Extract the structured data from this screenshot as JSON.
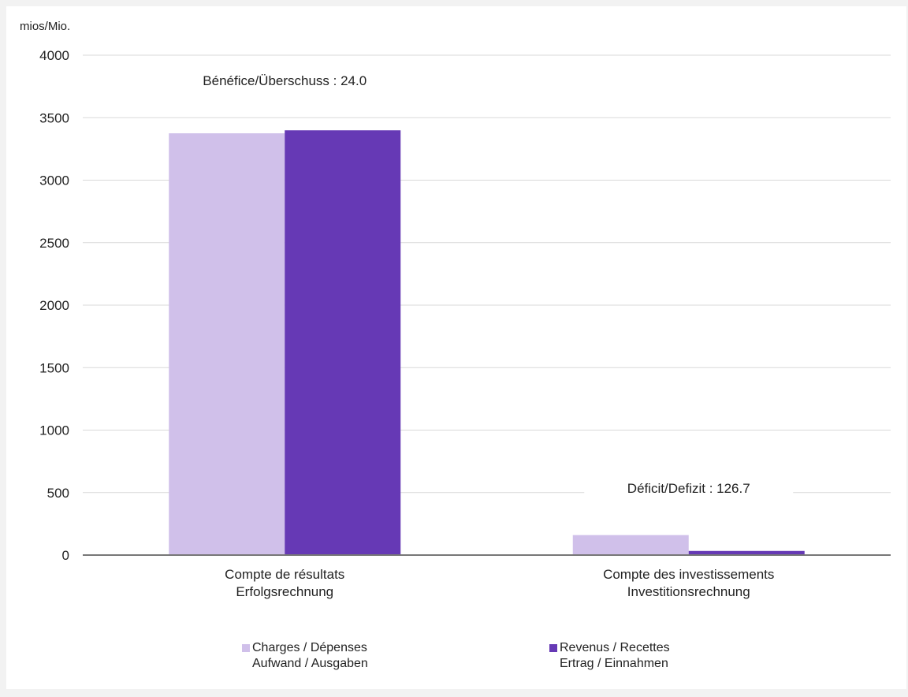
{
  "chart_data": {
    "type": "bar",
    "unit_label": "mios/Mio.",
    "categories": [
      "Compte de résultats\nErfolgsrechnung",
      "Compte des investissements\nInvestitionsrechnung"
    ],
    "series": [
      {
        "name": "Charges / Dépenses\nAufwand / Ausgaben",
        "values": [
          3375,
          160
        ],
        "color": "#d0c0ea"
      },
      {
        "name": "Revenus / Recettes\nErtrag / Einnahmen",
        "values": [
          3399,
          33
        ],
        "color": "#6639b5"
      }
    ],
    "ylim": [
      0,
      4000
    ],
    "yticks": [
      0,
      500,
      1000,
      1500,
      2000,
      2500,
      3000,
      3500,
      4000
    ],
    "grid": true,
    "legend_position": "bottom",
    "annotations": [
      {
        "text": "Bénéfice/Überschuss :  24.0",
        "category": 0
      },
      {
        "text": "Déficit/Defizit : 126.7",
        "category": 1
      }
    ]
  }
}
